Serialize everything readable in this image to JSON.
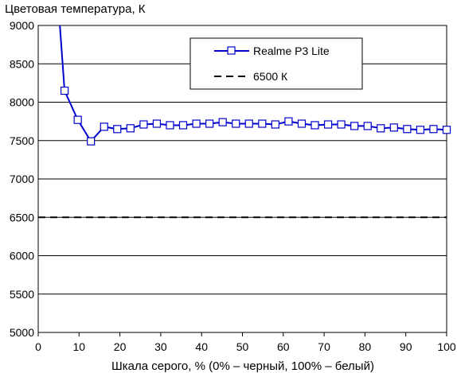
{
  "chart_data": {
    "type": "line",
    "title": "",
    "ylabel": "Цветовая температура, К",
    "xlabel": "Шкала серого, % (0% – черный, 100% – белый)",
    "xlim": [
      0,
      100
    ],
    "ylim": [
      5000,
      9000
    ],
    "xticks": [
      "0",
      "10",
      "20",
      "30",
      "40",
      "50",
      "60",
      "70",
      "80",
      "90",
      "100"
    ],
    "yticks": [
      "5000",
      "5500",
      "6000",
      "6500",
      "7000",
      "7500",
      "8000",
      "8500",
      "9000"
    ],
    "grid": true,
    "legend_position": "top-right",
    "series": [
      {
        "name": "Realme P3 Lite",
        "color": "#0000cc",
        "marker": "square",
        "x": [
          6.45,
          9.68,
          12.9,
          16.13,
          19.35,
          22.58,
          25.81,
          29.03,
          32.26,
          35.48,
          38.71,
          41.94,
          45.16,
          48.39,
          51.61,
          54.84,
          58.06,
          61.29,
          64.52,
          67.74,
          70.97,
          74.19,
          77.42,
          80.65,
          83.87,
          87.1,
          90.32,
          93.55,
          96.77,
          100
        ],
        "y": [
          8150,
          7770,
          7490,
          7680,
          7650,
          7660,
          7710,
          7720,
          7700,
          7700,
          7720,
          7720,
          7740,
          7720,
          7720,
          7720,
          7710,
          7750,
          7720,
          7700,
          7710,
          7710,
          7690,
          7690,
          7660,
          7670,
          7650,
          7640,
          7650,
          7640
        ]
      },
      {
        "name": "6500 К",
        "color": "#000000",
        "dashed": true,
        "x": [
          0,
          100
        ],
        "y": [
          6500,
          6500
        ]
      }
    ]
  }
}
